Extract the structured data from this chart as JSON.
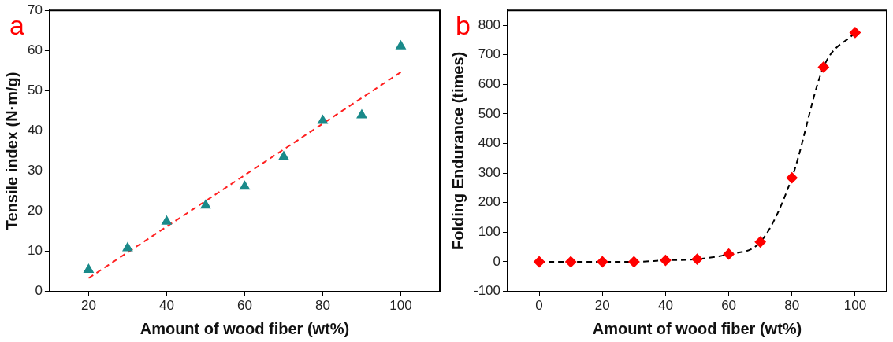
{
  "chart_data": [
    {
      "type": "scatter",
      "xlabel": "Amount of wood fiber (wt%)",
      "ylabel": "Tensile index (N·m/g)",
      "annotations": [
        "a"
      ],
      "xlim": [
        10,
        110
      ],
      "xticks": [
        20,
        40,
        60,
        80,
        100
      ],
      "ylim": [
        0,
        70
      ],
      "yticks": [
        0,
        10,
        20,
        30,
        40,
        50,
        60,
        70
      ],
      "grid": false,
      "legend": false,
      "series": [
        {
          "color": "#1a8a8a",
          "marker": "triangle",
          "x": [
            20,
            30,
            40,
            50,
            60,
            70,
            80,
            90,
            100
          ],
          "values": [
            5.4,
            10.8,
            17.4,
            21.4,
            26.1,
            33.5,
            42.5,
            43.9,
            61.1
          ]
        },
        {
          "type": "line",
          "color": "#ff2020",
          "marker": "none",
          "line_style": "dashed",
          "x": [
            20,
            100
          ],
          "values": [
            3.3,
            54.6
          ]
        }
      ]
    },
    {
      "type": "line",
      "xlabel": "Amount of wood fiber (wt%)",
      "ylabel": "Folding Endurance (times)",
      "annotations": [
        "b"
      ],
      "xlim": [
        -10,
        110
      ],
      "xticks": [
        0,
        20,
        40,
        60,
        80,
        100
      ],
      "ylim": [
        -100,
        850
      ],
      "yticks": [
        -100,
        0,
        100,
        200,
        300,
        400,
        500,
        600,
        700,
        800
      ],
      "grid": false,
      "legend": false,
      "series": [
        {
          "color": "#ff0000",
          "marker": "diamond",
          "line_style": "dashed",
          "x": [
            0,
            10,
            20,
            30,
            40,
            50,
            60,
            70,
            80,
            90,
            100
          ],
          "values": [
            0,
            0,
            0,
            0,
            5,
            9,
            26,
            67,
            284,
            658,
            775
          ]
        }
      ]
    }
  ]
}
